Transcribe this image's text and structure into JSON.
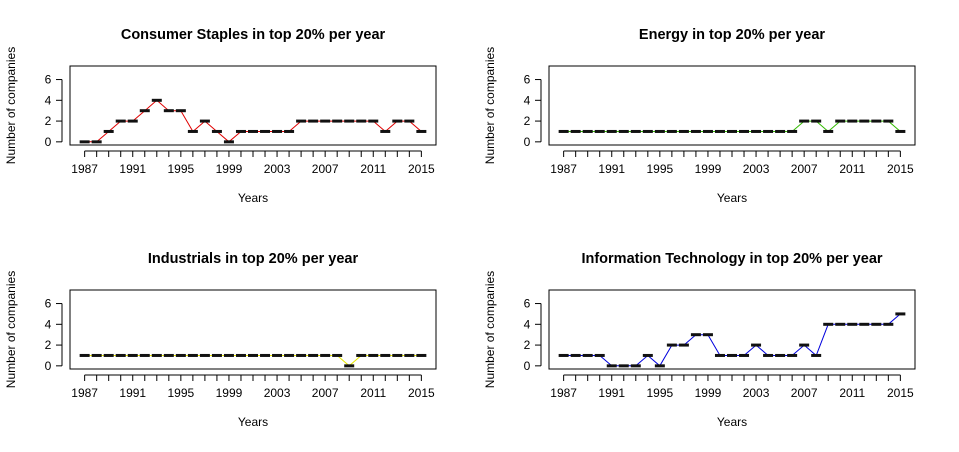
{
  "chart_data": [
    {
      "type": "line",
      "title": "Consumer Staples in top 20% per year",
      "xlabel": "Years",
      "ylabel": "Number of companies",
      "color": "#e00000",
      "x": [
        1987,
        1988,
        1989,
        1990,
        1991,
        1992,
        1993,
        1994,
        1995,
        1996,
        1997,
        1998,
        1999,
        2000,
        2001,
        2002,
        2003,
        2004,
        2005,
        2006,
        2007,
        2008,
        2009,
        2010,
        2011,
        2012,
        2013,
        2014,
        2015
      ],
      "values": [
        0,
        0,
        1,
        2,
        2,
        3,
        4,
        3,
        3,
        1,
        2,
        1,
        0,
        1,
        1,
        1,
        1,
        1,
        2,
        2,
        2,
        2,
        2,
        2,
        2,
        1,
        2,
        2,
        1
      ],
      "xticks": [
        "1987",
        "1991",
        "1995",
        "1999",
        "2003",
        "2007",
        "2011",
        "2015"
      ],
      "yticks": [
        "0",
        "2",
        "4",
        "6"
      ],
      "ylim": [
        0,
        7
      ]
    },
    {
      "type": "line",
      "title": "Energy in top 20% per year",
      "xlabel": "Years",
      "ylabel": "Number of companies",
      "color": "#33bb00",
      "x": [
        1987,
        1988,
        1989,
        1990,
        1991,
        1992,
        1993,
        1994,
        1995,
        1996,
        1997,
        1998,
        1999,
        2000,
        2001,
        2002,
        2003,
        2004,
        2005,
        2006,
        2007,
        2008,
        2009,
        2010,
        2011,
        2012,
        2013,
        2014,
        2015
      ],
      "values": [
        1,
        1,
        1,
        1,
        1,
        1,
        1,
        1,
        1,
        1,
        1,
        1,
        1,
        1,
        1,
        1,
        1,
        1,
        1,
        1,
        2,
        2,
        1,
        2,
        2,
        2,
        2,
        2,
        1
      ],
      "xticks": [
        "1987",
        "1991",
        "1995",
        "1999",
        "2003",
        "2007",
        "2011",
        "2015"
      ],
      "yticks": [
        "0",
        "2",
        "4",
        "6"
      ],
      "ylim": [
        0,
        7
      ]
    },
    {
      "type": "line",
      "title": "Industrials in top 20% per year",
      "xlabel": "Years",
      "ylabel": "Number of companies",
      "color": "#e6e600",
      "x": [
        1987,
        1988,
        1989,
        1990,
        1991,
        1992,
        1993,
        1994,
        1995,
        1996,
        1997,
        1998,
        1999,
        2000,
        2001,
        2002,
        2003,
        2004,
        2005,
        2006,
        2007,
        2008,
        2009,
        2010,
        2011,
        2012,
        2013,
        2014,
        2015
      ],
      "values": [
        1,
        1,
        1,
        1,
        1,
        1,
        1,
        1,
        1,
        1,
        1,
        1,
        1,
        1,
        1,
        1,
        1,
        1,
        1,
        1,
        1,
        1,
        0,
        1,
        1,
        1,
        1,
        1,
        1
      ],
      "xticks": [
        "1987",
        "1991",
        "1995",
        "1999",
        "2003",
        "2007",
        "2011",
        "2015"
      ],
      "yticks": [
        "0",
        "2",
        "4",
        "6"
      ],
      "ylim": [
        0,
        7
      ]
    },
    {
      "type": "line",
      "title": "Information Technology in top 20% per year",
      "xlabel": "Years",
      "ylabel": "Number of companies",
      "color": "#0000dd",
      "x": [
        1987,
        1988,
        1989,
        1990,
        1991,
        1992,
        1993,
        1994,
        1995,
        1996,
        1997,
        1998,
        1999,
        2000,
        2001,
        2002,
        2003,
        2004,
        2005,
        2006,
        2007,
        2008,
        2009,
        2010,
        2011,
        2012,
        2013,
        2014,
        2015
      ],
      "values": [
        1,
        1,
        1,
        1,
        0,
        0,
        0,
        1,
        0,
        2,
        2,
        3,
        3,
        1,
        1,
        1,
        2,
        1,
        1,
        1,
        2,
        1,
        4,
        4,
        4,
        4,
        4,
        4,
        5
      ],
      "xticks": [
        "1987",
        "1991",
        "1995",
        "1999",
        "2003",
        "2007",
        "2011",
        "2015"
      ],
      "yticks": [
        "0",
        "2",
        "4",
        "6"
      ],
      "ylim": [
        0,
        7
      ]
    }
  ]
}
